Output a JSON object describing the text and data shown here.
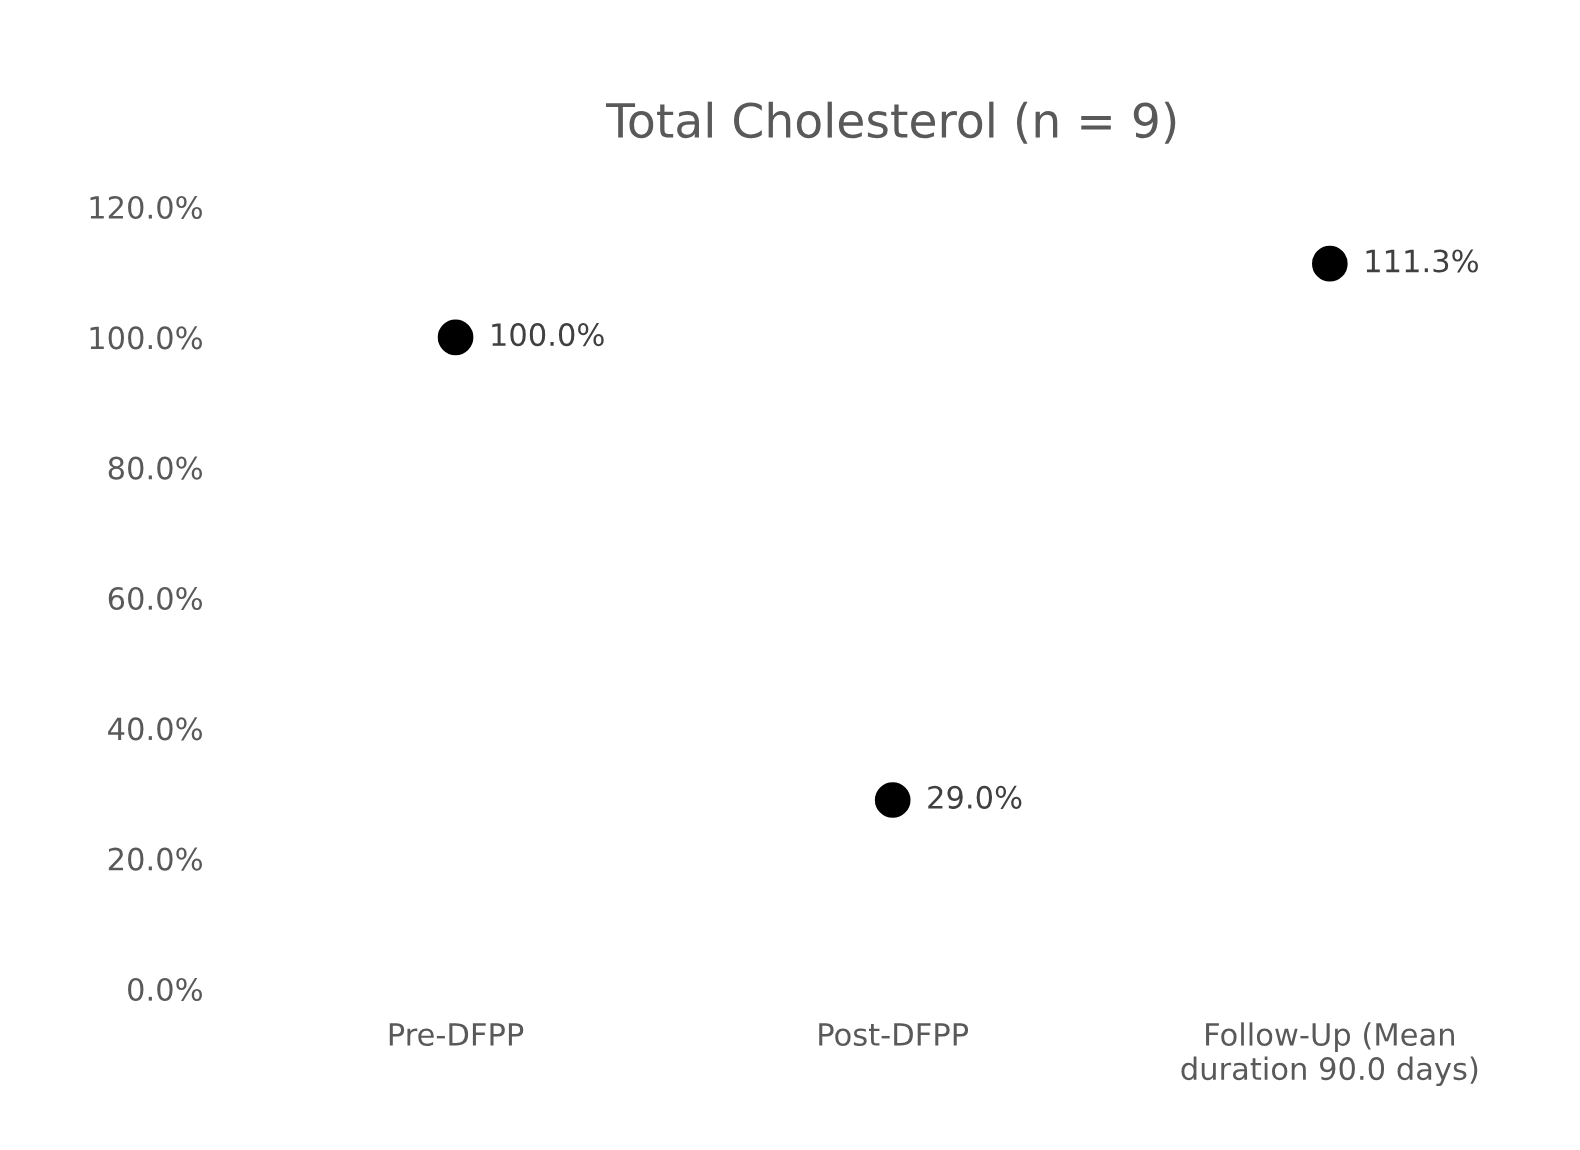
{
  "chart_data": {
    "type": "scatter",
    "title": "Total Cholesterol (n = 9)",
    "categories": [
      "Pre-DFPP",
      "Post-DFPP",
      "Follow-Up (Mean\nduration 90.0 days)"
    ],
    "series": [
      {
        "color": "#000000",
        "values": [
          100.0,
          29.0,
          111.3
        ],
        "value_labels": [
          "100.0%",
          "29.0%",
          "111.3%"
        ]
      }
    ],
    "ylim": [
      0,
      120
    ],
    "yticks": [
      {
        "value": 0,
        "label": "0.0%"
      },
      {
        "value": 20,
        "label": "20.0%"
      },
      {
        "value": 40,
        "label": "40.0%"
      },
      {
        "value": 60,
        "label": "60.0%"
      },
      {
        "value": 80,
        "label": "80.0%"
      },
      {
        "value": 100,
        "label": "100.0%"
      },
      {
        "value": 120,
        "label": "120.0%"
      }
    ],
    "grid": false,
    "marker": "circle",
    "legend": false
  }
}
